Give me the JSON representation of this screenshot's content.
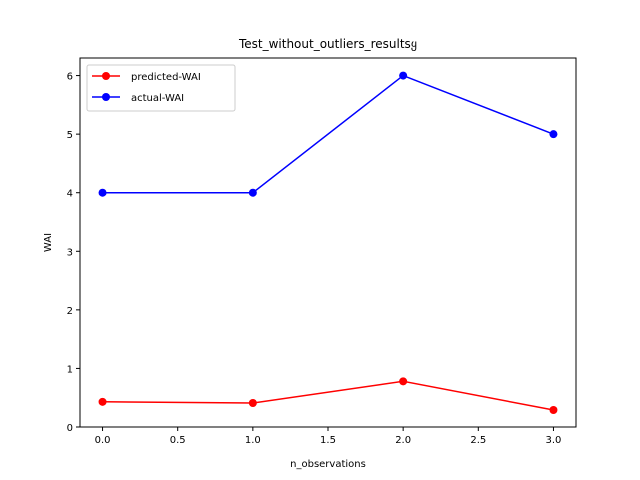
{
  "chart_data": {
    "type": "line",
    "title": "Test_without_outliers_resultsყ",
    "xlabel": "n_observations",
    "ylabel": "WAI",
    "x": [
      0,
      1,
      2,
      3
    ],
    "xlim": [
      -0.15,
      3.15
    ],
    "ylim": [
      0,
      6.3
    ],
    "xticks": [
      0.0,
      0.5,
      1.0,
      1.5,
      2.0,
      2.5,
      3.0
    ],
    "xtick_labels": [
      "0.0",
      "0.5",
      "1.0",
      "1.5",
      "2.0",
      "2.5",
      "3.0"
    ],
    "yticks": [
      0,
      1,
      2,
      3,
      4,
      5,
      6
    ],
    "ytick_labels": [
      "0",
      "1",
      "2",
      "3",
      "4",
      "5",
      "6"
    ],
    "grid": false,
    "legend_position": "upper-left",
    "series": [
      {
        "name": "predicted-WAI",
        "color": "#ff0000",
        "marker": "circle",
        "values": [
          0.43,
          0.41,
          0.78,
          0.29
        ]
      },
      {
        "name": "actual-WAI",
        "color": "#0000ff",
        "marker": "circle",
        "values": [
          4,
          4,
          6,
          5
        ]
      }
    ]
  }
}
